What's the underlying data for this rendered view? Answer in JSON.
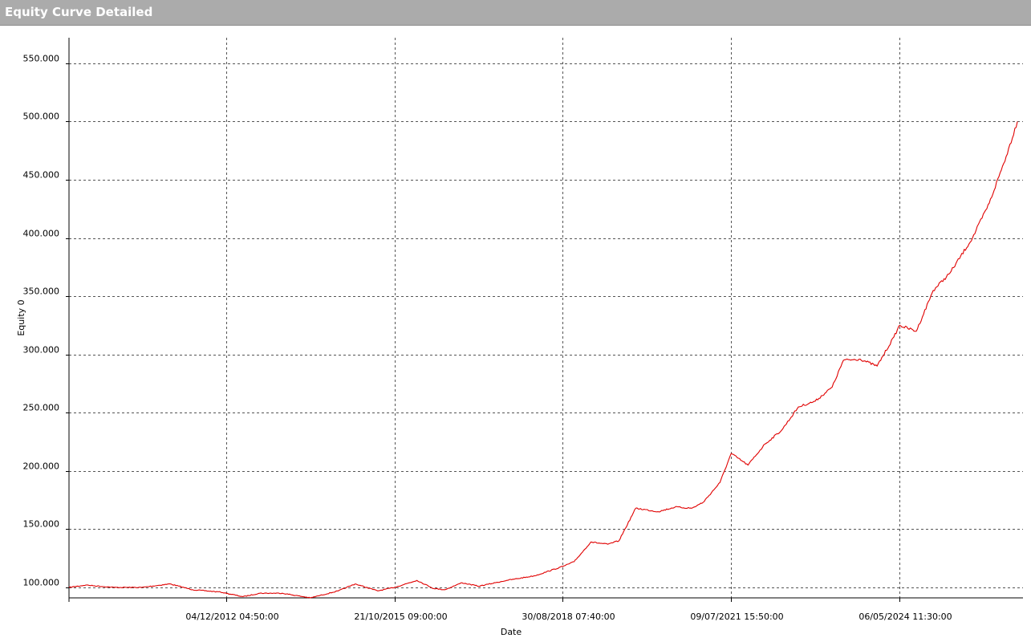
{
  "window": {
    "title": "Equity Curve Detailed"
  },
  "chart_data": {
    "type": "line",
    "title": "",
    "xlabel": "Date",
    "ylabel": "Equity 0",
    "ylim": [
      91000,
      572000
    ],
    "xlim": [
      2009.2,
      2026.2
    ],
    "grid": true,
    "y_ticks": [
      100000,
      150000,
      200000,
      250000,
      300000,
      350000,
      400000,
      450000,
      500000,
      550000
    ],
    "y_tick_labels": [
      "100.000",
      "150.000",
      "200.000",
      "250.000",
      "300.000",
      "350.000",
      "400.000",
      "450.000",
      "500.000",
      "550.000"
    ],
    "x_ticks": [
      2012.0,
      2015.0,
      2018.0,
      2021.0,
      2024.0
    ],
    "x_tick_labels": [
      "04/12/2012 04:50:00",
      "21/10/2015 09:00:00",
      "30/08/2018 07:40:00",
      "09/07/2021 15:50:00",
      "06/05/2024 11:30:00"
    ],
    "series": [
      {
        "color": "#e00000",
        "x": [
          2009.2,
          2009.5,
          2010.0,
          2010.5,
          2011.0,
          2011.4,
          2011.9,
          2012.3,
          2012.6,
          2013.0,
          2013.5,
          2014.0,
          2014.3,
          2014.7,
          2015.0,
          2015.4,
          2015.7,
          2015.9,
          2016.2,
          2016.5,
          2016.8,
          2017.0,
          2017.5,
          2018.0,
          2018.2,
          2018.5,
          2018.8,
          2019.0,
          2019.3,
          2019.7,
          2020.0,
          2020.3,
          2020.5,
          2020.8,
          2021.0,
          2021.3,
          2021.6,
          2021.9,
          2022.2,
          2022.5,
          2022.8,
          2023.0,
          2023.3,
          2023.6,
          2023.9,
          2024.0,
          2024.3,
          2024.6,
          2024.9,
          2025.3,
          2025.6,
          2025.9,
          2026.1
        ],
        "y": [
          100000,
          102000,
          100000,
          100000,
          103000,
          98000,
          96000,
          92000,
          95000,
          95000,
          91000,
          97000,
          103000,
          97000,
          100000,
          106000,
          99000,
          98000,
          104000,
          101000,
          104000,
          106000,
          110000,
          118000,
          122000,
          139000,
          137000,
          140000,
          168000,
          165000,
          169000,
          168000,
          173000,
          190000,
          215000,
          205000,
          223000,
          235000,
          255000,
          260000,
          272000,
          295000,
          296000,
          290000,
          315000,
          325000,
          320000,
          355000,
          370000,
          400000,
          430000,
          470000,
          500000
        ]
      }
    ]
  }
}
